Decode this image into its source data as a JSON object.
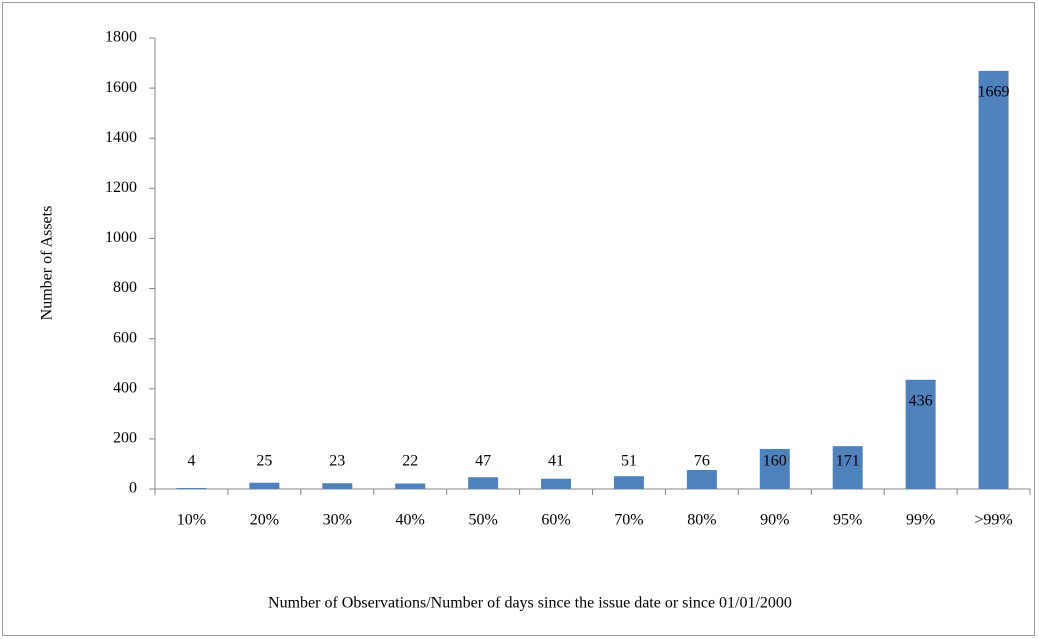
{
  "chart_data": {
    "type": "bar",
    "x_label": "Number of Observations/Number of days since the issue date or since 01/01/2000",
    "y_label": "Number of Assets",
    "categories": [
      "10%",
      "20%",
      "30%",
      "40%",
      "50%",
      "60%",
      "70%",
      "80%",
      "90%",
      "95%",
      "99%",
      ">99%"
    ],
    "values": [
      4,
      25,
      23,
      22,
      47,
      41,
      51,
      76,
      160,
      171,
      436,
      1669
    ],
    "color": "#4f81bd",
    "ylim": [
      0,
      1800
    ],
    "yticks": [
      0,
      200,
      400,
      600,
      800,
      1000,
      1200,
      1400,
      1600,
      1800
    ],
    "grid": false
  }
}
